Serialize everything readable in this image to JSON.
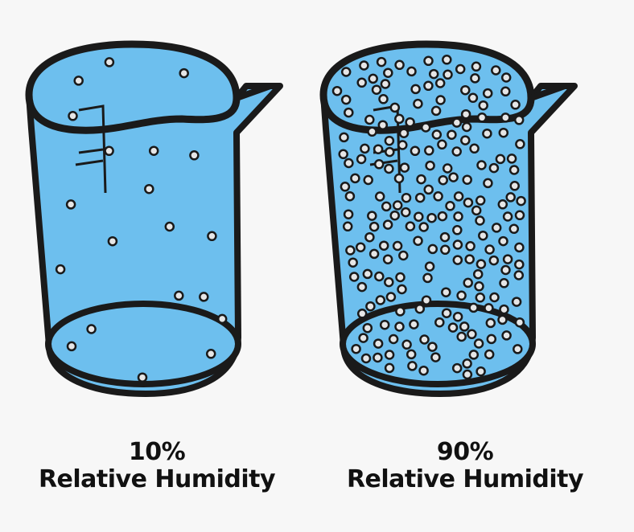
{
  "colors": {
    "background": "#f7f7f7",
    "water": "#6dbfee",
    "outline": "#1a1a1a",
    "particle_fill": "#e6e6e6",
    "particle_stroke": "#1a1a1a"
  },
  "beakers": [
    {
      "id": "low",
      "percent": "10%",
      "label": "Relative Humidity",
      "particle_count": 20
    },
    {
      "id": "high",
      "percent": "90%",
      "label": "Relative Humidity",
      "particle_count": 218
    }
  ]
}
